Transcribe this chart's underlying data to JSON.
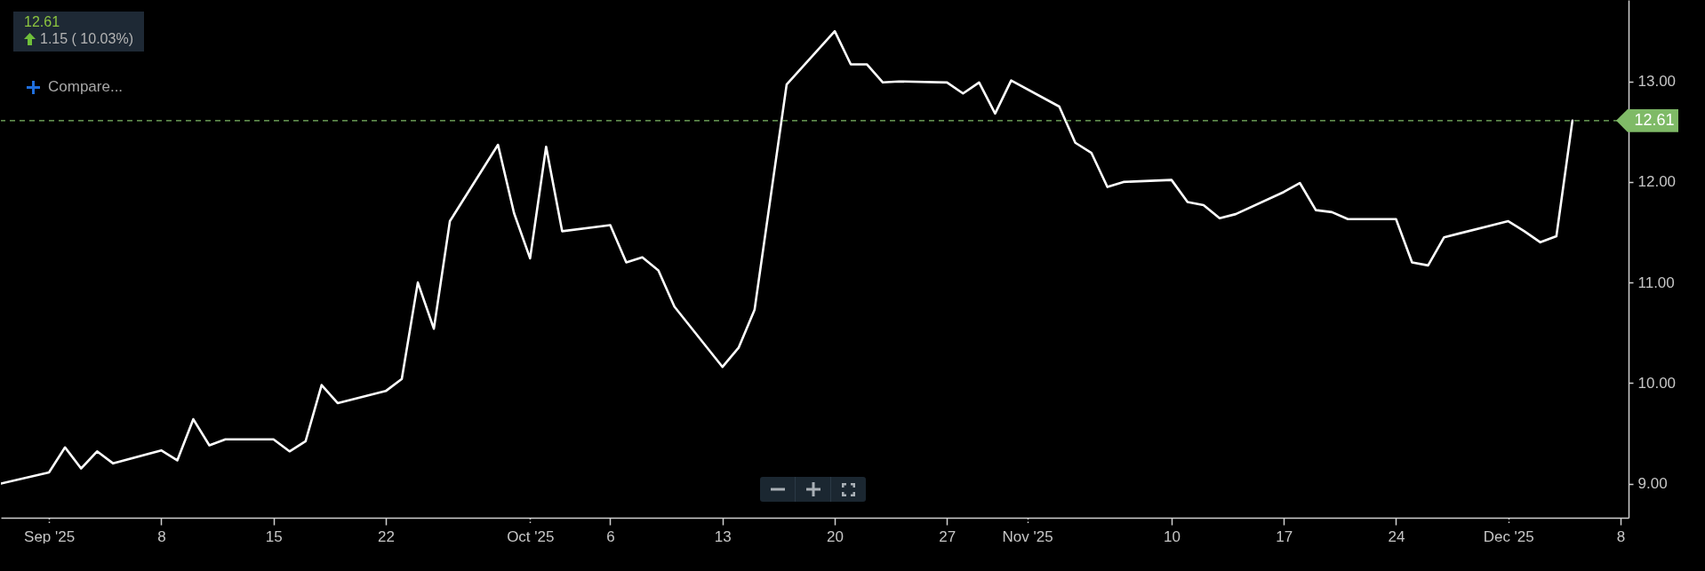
{
  "chart_data": {
    "type": "line",
    "annotations": [
      "12.61",
      "1.15 ( 10.03%)",
      "Compare..."
    ],
    "x": [
      "2025-08-29",
      "2025-09-01",
      "2025-09-02",
      "2025-09-03",
      "2025-09-04",
      "2025-09-05",
      "2025-09-08",
      "2025-09-09",
      "2025-09-10",
      "2025-09-11",
      "2025-09-12",
      "2025-09-15",
      "2025-09-16",
      "2025-09-17",
      "2025-09-18",
      "2025-09-19",
      "2025-09-22",
      "2025-09-23",
      "2025-09-24",
      "2025-09-25",
      "2025-09-26",
      "2025-09-29",
      "2025-09-30",
      "2025-10-01",
      "2025-10-02",
      "2025-10-03",
      "2025-10-06",
      "2025-10-07",
      "2025-10-08",
      "2025-10-09",
      "2025-10-10",
      "2025-10-13",
      "2025-10-14",
      "2025-10-15",
      "2025-10-16",
      "2025-10-17",
      "2025-10-20",
      "2025-10-21",
      "2025-10-22",
      "2025-10-23",
      "2025-10-24",
      "2025-10-27",
      "2025-10-28",
      "2025-10-29",
      "2025-10-30",
      "2025-10-31",
      "2025-11-03",
      "2025-11-04",
      "2025-11-05",
      "2025-11-06",
      "2025-11-07",
      "2025-11-10",
      "2025-11-11",
      "2025-11-12",
      "2025-11-13",
      "2025-11-14",
      "2025-11-17",
      "2025-11-18",
      "2025-11-19",
      "2025-11-20",
      "2025-11-21",
      "2025-11-24",
      "2025-11-25",
      "2025-11-26",
      "2025-11-27",
      "2025-11-28",
      "2025-12-01",
      "2025-12-02",
      "2025-12-03",
      "2025-12-04",
      "2025-12-05"
    ],
    "series": [
      {
        "color": "#ffffff",
        "values": [
          9.0,
          9.11,
          9.36,
          9.15,
          9.32,
          9.2,
          9.33,
          9.23,
          9.64,
          9.38,
          9.44,
          9.44,
          9.32,
          9.42,
          9.98,
          9.8,
          9.92,
          10.04,
          11.0,
          10.54,
          11.61,
          12.37,
          11.69,
          11.24,
          12.35,
          11.51,
          11.57,
          11.2,
          11.25,
          11.12,
          10.76,
          10.16,
          10.35,
          10.73,
          11.85,
          12.97,
          13.5,
          13.17,
          13.17,
          12.99,
          13.0,
          12.99,
          12.88,
          12.99,
          12.68,
          13.01,
          12.75,
          12.39,
          12.29,
          11.95,
          12.0,
          12.02,
          11.8,
          11.77,
          11.64,
          11.68,
          11.9,
          11.99,
          11.72,
          11.7,
          11.63,
          11.63,
          11.2,
          11.17,
          11.45,
          11.49,
          11.61,
          11.51,
          11.4,
          11.46,
          12.61
        ]
      }
    ],
    "xlim": [
      "2025-08-29",
      "2025-12-08T12:00"
    ],
    "xticks": [
      {
        "value": "2025-09-01",
        "label": "Sep '25"
      },
      {
        "value": "2025-09-08",
        "label": "8"
      },
      {
        "value": "2025-09-15",
        "label": "15"
      },
      {
        "value": "2025-09-22",
        "label": "22"
      },
      {
        "value": "2025-10-01",
        "label": "Oct '25"
      },
      {
        "value": "2025-10-06",
        "label": "6"
      },
      {
        "value": "2025-10-13",
        "label": "13"
      },
      {
        "value": "2025-10-20",
        "label": "20"
      },
      {
        "value": "2025-10-27",
        "label": "27"
      },
      {
        "value": "2025-11-01",
        "label": "Nov '25"
      },
      {
        "value": "2025-11-10",
        "label": "10"
      },
      {
        "value": "2025-11-17",
        "label": "17"
      },
      {
        "value": "2025-11-24",
        "label": "24"
      },
      {
        "value": "2025-12-01",
        "label": "Dec '25"
      },
      {
        "value": "2025-12-08",
        "label": "8"
      }
    ],
    "ylim": [
      8.66,
      13.81
    ],
    "yticks": [
      {
        "value": 9,
        "label": "9.00"
      },
      {
        "value": 10,
        "label": "10.00"
      },
      {
        "value": 11,
        "label": "11.00"
      },
      {
        "value": 12,
        "label": "12.00"
      },
      {
        "value": 13,
        "label": "13.00"
      }
    ],
    "ref_lines": [
      {
        "axis": "y",
        "value": 12.61,
        "label": "12.61",
        "color": "#7fba67",
        "line_style": "dashed"
      }
    ]
  }
}
